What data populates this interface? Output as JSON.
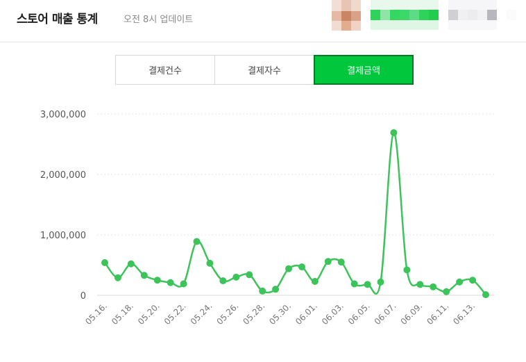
{
  "header": {
    "title": "스토어 매출 통계",
    "subtitle": "오전 8시 업데이트"
  },
  "tabs": [
    {
      "label": "결제건수",
      "active": false
    },
    {
      "label": "결제자수",
      "active": false
    },
    {
      "label": "결제금액",
      "active": true
    }
  ],
  "colors": {
    "accent": "#00c73c",
    "line": "#3cc35a",
    "active_border": "#007a24"
  },
  "chart_data": {
    "type": "line",
    "title": "",
    "xlabel": "",
    "ylabel": "",
    "ylim": [
      0,
      3000000
    ],
    "yticks": [
      0,
      1000000,
      2000000,
      3000000
    ],
    "ytick_labels": [
      "0",
      "1,000,000",
      "2,000,000",
      "3,000,000"
    ],
    "xtick_labels": [
      "05.16.",
      "05.18.",
      "05.20.",
      "05.22.",
      "05.24.",
      "05.26.",
      "05.28.",
      "05.30.",
      "06.01.",
      "06.03.",
      "06.05.",
      "06.07.",
      "06.09.",
      "06.11.",
      "06.13."
    ],
    "grid": "horizontal dotted",
    "series": [
      {
        "dates": [
          "05.16.",
          "05.17.",
          "05.18.",
          "05.19.",
          "05.20.",
          "05.21.",
          "05.22.",
          "05.23.",
          "05.24.",
          "05.25.",
          "05.26.",
          "05.27.",
          "05.28.",
          "05.29.",
          "05.30.",
          "05.31.",
          "06.01.",
          "06.02.",
          "06.03.",
          "06.04.",
          "06.05.",
          "06.06.",
          "06.07.",
          "06.08.",
          "06.09.",
          "06.10.",
          "06.11.",
          "06.12.",
          "06.13.",
          "06.14."
        ],
        "values": [
          540000,
          290000,
          520000,
          330000,
          250000,
          210000,
          190000,
          890000,
          530000,
          240000,
          300000,
          340000,
          70000,
          100000,
          440000,
          470000,
          230000,
          560000,
          550000,
          190000,
          180000,
          220000,
          2690000,
          420000,
          180000,
          140000,
          60000,
          220000,
          250000,
          10000
        ]
      }
    ]
  }
}
